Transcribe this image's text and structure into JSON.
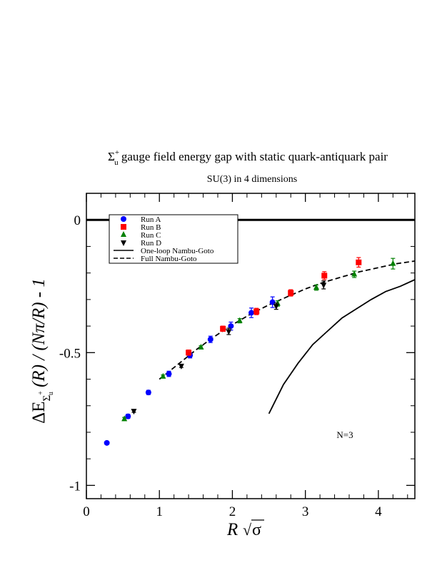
{
  "chart_data": {
    "type": "scatter",
    "title": "gauge field energy gap with static quark-antiquark pair",
    "title_symbol": {
      "base": "Σ",
      "sup": "+",
      "sub": "u"
    },
    "subtitle": "SU(3) in 4 dimensions",
    "xlabel": {
      "main": "R",
      "sqrt": "σ"
    },
    "ylabel": {
      "prefix": "ΔE",
      "sub_base": "Σ",
      "sub_sup": "+",
      "sub_sub": "u",
      "suffix": "(R) / (Nπ/R) - 1"
    },
    "xlim": [
      0,
      4.5
    ],
    "ylim": [
      -1.05,
      0.1
    ],
    "x_ticks": [
      "0",
      "1",
      "2",
      "3",
      "4"
    ],
    "y_ticks": [
      "0",
      "-0.5",
      "-1"
    ],
    "annotation": "N=3",
    "reference_line_y": 0,
    "legend_position": "top-left",
    "series": [
      {
        "name": "Run A",
        "marker": "circle",
        "color": "#0000ff",
        "points": [
          [
            0.28,
            -0.84,
            0.005
          ],
          [
            0.57,
            -0.74,
            0.008
          ],
          [
            0.85,
            -0.65,
            0.008
          ],
          [
            1.13,
            -0.58,
            0.01
          ],
          [
            1.42,
            -0.51,
            0.01
          ],
          [
            1.7,
            -0.45,
            0.012
          ],
          [
            1.98,
            -0.4,
            0.015
          ],
          [
            2.26,
            -0.35,
            0.018
          ],
          [
            2.55,
            -0.31,
            0.02
          ]
        ]
      },
      {
        "name": "Run B",
        "marker": "square",
        "color": "#ff0000",
        "points": [
          [
            1.4,
            -0.5,
            0.01
          ],
          [
            1.87,
            -0.41,
            0.01
          ],
          [
            2.33,
            -0.345,
            0.012
          ],
          [
            2.8,
            -0.275,
            0.012
          ],
          [
            3.26,
            -0.21,
            0.015
          ],
          [
            3.73,
            -0.16,
            0.018
          ]
        ]
      },
      {
        "name": "Run C",
        "marker": "triangle-up",
        "color": "#008000",
        "points": [
          [
            0.52,
            -0.75,
            0.006
          ],
          [
            1.05,
            -0.59,
            0.006
          ],
          [
            1.57,
            -0.48,
            0.006
          ],
          [
            2.1,
            -0.38,
            0.008
          ],
          [
            2.62,
            -0.315,
            0.01
          ],
          [
            3.15,
            -0.255,
            0.01
          ],
          [
            3.67,
            -0.205,
            0.012
          ],
          [
            4.2,
            -0.165,
            0.02
          ]
        ]
      },
      {
        "name": "Run D",
        "marker": "triangle-down",
        "color": "#000000",
        "points": [
          [
            0.65,
            -0.72,
            0.005
          ],
          [
            1.3,
            -0.55,
            0.006
          ],
          [
            1.95,
            -0.42,
            0.012
          ],
          [
            2.6,
            -0.325,
            0.012
          ],
          [
            3.25,
            -0.245,
            0.015
          ]
        ]
      },
      {
        "name": "One-loop Nambu-Goto",
        "style": "solid",
        "color": "#000000",
        "x": [
          2.5,
          2.7,
          2.9,
          3.1,
          3.3,
          3.5,
          3.7,
          3.9,
          4.1,
          4.3,
          4.5
        ],
        "y": [
          -0.73,
          -0.62,
          -0.54,
          -0.47,
          -0.42,
          -0.37,
          -0.335,
          -0.3,
          -0.27,
          -0.25,
          -0.225
        ]
      },
      {
        "name": "Full Nambu-Goto",
        "style": "dashed",
        "color": "#000000",
        "x": [
          1.0,
          1.25,
          1.5,
          1.75,
          2.0,
          2.25,
          2.5,
          2.75,
          3.0,
          3.25,
          3.5,
          3.75,
          4.0,
          4.25,
          4.5
        ],
        "y": [
          -0.6,
          -0.545,
          -0.49,
          -0.44,
          -0.395,
          -0.355,
          -0.32,
          -0.29,
          -0.26,
          -0.235,
          -0.215,
          -0.195,
          -0.18,
          -0.165,
          -0.155
        ]
      }
    ]
  }
}
